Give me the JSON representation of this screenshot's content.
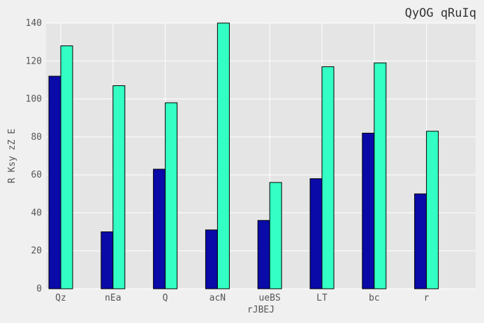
{
  "chart_data": {
    "type": "bar",
    "title": "QyOG qRuIq",
    "xlabel": "rJBEJ",
    "ylabel": "R Ksy zZ E",
    "categories": [
      "Qz",
      "nEa",
      "Q",
      "acN",
      "ueBS",
      "LT",
      "bc",
      "r"
    ],
    "series": [
      {
        "values": [
          112,
          30,
          63,
          31,
          36,
          58,
          82,
          50
        ],
        "color": "#0a0aa8"
      },
      {
        "values": [
          128,
          107,
          98,
          140,
          56,
          117,
          119,
          83
        ],
        "color": "#33ffc4"
      }
    ],
    "ylim": [
      0,
      140
    ],
    "yticks": [
      0,
      20,
      40,
      60,
      80,
      100,
      120,
      140
    ],
    "grid": true,
    "plot_background": "#e5e5e5",
    "grid_color": "#ffffff"
  }
}
